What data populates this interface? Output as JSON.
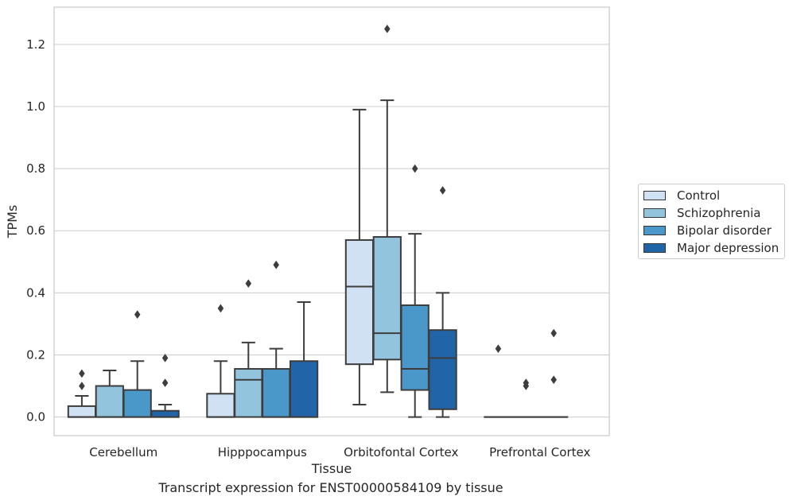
{
  "chart_data": {
    "type": "box",
    "xlabel": "Tissue",
    "ylabel": "TPMs",
    "caption": "Transcript expression for ENST00000584109 by tissue",
    "ylim": [
      -0.06,
      1.32
    ],
    "yticks": [
      "0.0",
      "0.2",
      "0.4",
      "0.6",
      "0.8",
      "1.0",
      "1.2"
    ],
    "grid": "horizontal",
    "legend_position": "right",
    "categories": [
      "Cerebellum",
      "Hipppocampus",
      "Orbitofontal Cortex",
      "Prefrontal Cortex"
    ],
    "series": [
      {
        "name": "Control",
        "color": "#cfe1f2",
        "boxes": [
          {
            "min": 0.0,
            "q1": 0.0,
            "median": 0.0,
            "q3": 0.035,
            "max": 0.068,
            "outliers": [
              0.1,
              0.14
            ]
          },
          {
            "min": 0.0,
            "q1": 0.0,
            "median": 0.0,
            "q3": 0.075,
            "max": 0.18,
            "outliers": [
              0.35
            ]
          },
          {
            "min": 0.04,
            "q1": 0.17,
            "median": 0.42,
            "q3": 0.57,
            "max": 0.99,
            "outliers": []
          },
          {
            "min": 0.0,
            "q1": 0.0,
            "median": 0.0,
            "q3": 0.0,
            "max": 0.0,
            "outliers": [
              0.22
            ]
          }
        ]
      },
      {
        "name": "Schizophrenia",
        "color": "#93c4de",
        "boxes": [
          {
            "min": 0.0,
            "q1": 0.0,
            "median": 0.0,
            "q3": 0.1,
            "max": 0.15,
            "outliers": []
          },
          {
            "min": 0.0,
            "q1": 0.0,
            "median": 0.12,
            "q3": 0.155,
            "max": 0.24,
            "outliers": [
              0.43
            ]
          },
          {
            "min": 0.08,
            "q1": 0.185,
            "median": 0.27,
            "q3": 0.58,
            "max": 1.02,
            "outliers": [
              1.25
            ]
          },
          {
            "min": 0.0,
            "q1": 0.0,
            "median": 0.0,
            "q3": 0.0,
            "max": 0.0,
            "outliers": [
              0.1,
              0.11
            ]
          }
        ]
      },
      {
        "name": "Bipolar disorder",
        "color": "#4a98c9",
        "boxes": [
          {
            "min": 0.0,
            "q1": 0.0,
            "median": 0.0,
            "q3": 0.087,
            "max": 0.18,
            "outliers": [
              0.33
            ]
          },
          {
            "min": 0.0,
            "q1": 0.0,
            "median": 0.0,
            "q3": 0.155,
            "max": 0.22,
            "outliers": [
              0.49
            ]
          },
          {
            "min": 0.0,
            "q1": 0.087,
            "median": 0.155,
            "q3": 0.36,
            "max": 0.59,
            "outliers": [
              0.8
            ]
          },
          {
            "min": 0.0,
            "q1": 0.0,
            "median": 0.0,
            "q3": 0.0,
            "max": 0.0,
            "outliers": [
              0.12,
              0.27
            ]
          }
        ]
      },
      {
        "name": "Major depression",
        "color": "#2264a8",
        "boxes": [
          {
            "min": 0.0,
            "q1": 0.0,
            "median": 0.0,
            "q3": 0.02,
            "max": 0.04,
            "outliers": [
              0.11,
              0.19
            ]
          },
          {
            "min": 0.0,
            "q1": 0.0,
            "median": 0.0,
            "q3": 0.18,
            "max": 0.37,
            "outliers": []
          },
          {
            "min": 0.0,
            "q1": 0.025,
            "median": 0.19,
            "q3": 0.28,
            "max": 0.4,
            "outliers": [
              0.73
            ]
          },
          null
        ]
      }
    ]
  }
}
